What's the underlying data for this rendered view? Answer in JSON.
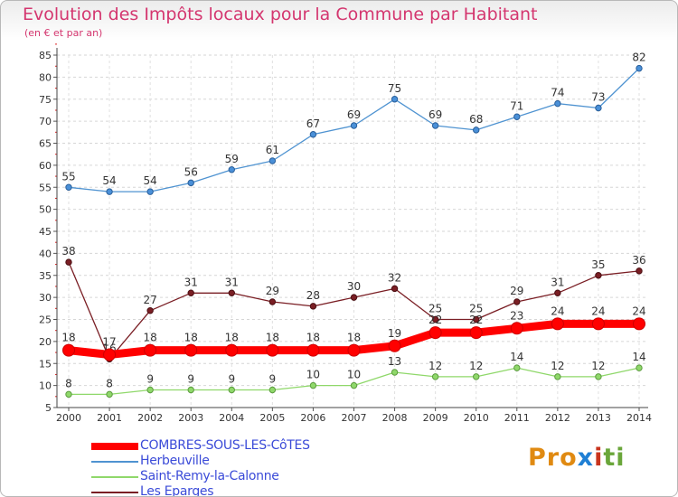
{
  "chart_data": {
    "type": "line",
    "title": "Evolution des Impôts locaux pour la Commune par Habitant",
    "subtitle": "(en € et par an)",
    "xlabel": "",
    "ylabel": "",
    "ylim": [
      5,
      85
    ],
    "ytick_step": 5,
    "grid": true,
    "legend_position": "bottom-left",
    "x": [
      2000,
      2001,
      2002,
      2003,
      2004,
      2005,
      2006,
      2007,
      2008,
      2009,
      2010,
      2011,
      2012,
      2013,
      2014
    ],
    "series": [
      {
        "name": "Herbeuville",
        "color": "#4f93d1",
        "values": [
          55,
          54,
          54,
          56,
          59,
          61,
          67,
          69,
          75,
          69,
          68,
          71,
          74,
          73,
          82
        ]
      },
      {
        "name": "Les Eparges",
        "color": "#7a1e24",
        "values": [
          38,
          16,
          27,
          31,
          31,
          29,
          28,
          30,
          32,
          25,
          25,
          29,
          31,
          35,
          36
        ]
      },
      {
        "name": "Saint-Remy-la-Calonne",
        "color": "#8fd86a",
        "values": [
          8,
          8,
          9,
          9,
          9,
          9,
          10,
          10,
          13,
          12,
          12,
          14,
          12,
          12,
          14
        ]
      },
      {
        "name": "COMBRES-SOUS-LES-CôTES",
        "color": "#ff0000",
        "values": [
          18,
          17,
          18,
          18,
          18,
          18,
          18,
          18,
          19,
          22,
          22,
          23,
          24,
          24,
          24
        ]
      }
    ],
    "legend": [
      "COMBRES-SOUS-LES-CôTES",
      "Herbeuville",
      "Saint-Remy-la-Calonne",
      "Les Eparges"
    ]
  },
  "logo": {
    "p1": "Pro",
    "p2": "x",
    "p3": "i",
    "p4": "ti"
  }
}
